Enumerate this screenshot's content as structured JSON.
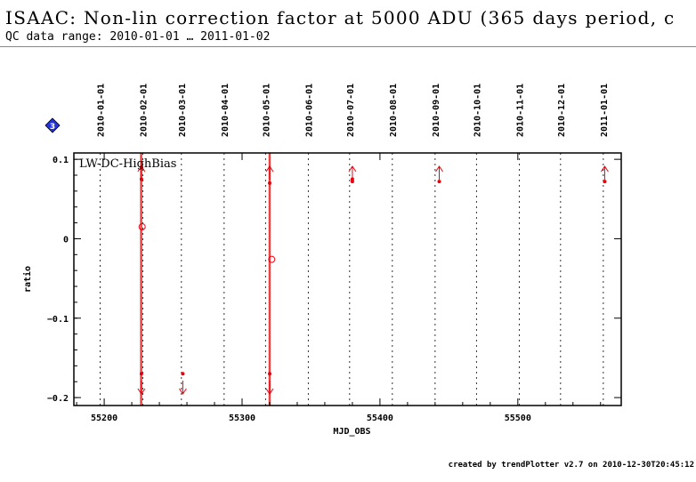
{
  "header": {
    "title": "ISAAC: Non-lin correction factor at 5000 ADU (365 days period, c",
    "subtitle": "QC data range: 2010-01-01 … 2011-01-02"
  },
  "footer": "created by trendPlotter v2.7 on 2010-12-30T20:45:12",
  "marker_icon": "diamond-3-icon",
  "chart_data": {
    "type": "scatter",
    "xlabel": "MJD_OBS",
    "ylabel": "ratio",
    "panel_label": "LW-DC-HighBias",
    "xlim": [
      55178,
      55575
    ],
    "ylim": [
      -0.21,
      0.108
    ],
    "xticks": [
      55200,
      55300,
      55400,
      55500
    ],
    "yticks": [
      0.1,
      0,
      -0.1,
      -0.2
    ],
    "ytick_labels": [
      "0.1",
      "0",
      "−0.1",
      "−0.2"
    ],
    "date_markers": [
      {
        "label": "2010-01-01",
        "mjd": 55197
      },
      {
        "label": "2010-02-01",
        "mjd": 55228
      },
      {
        "label": "2010-03-01",
        "mjd": 55256
      },
      {
        "label": "2010-04-01",
        "mjd": 55287
      },
      {
        "label": "2010-05-01",
        "mjd": 55317
      },
      {
        "label": "2010-06-01",
        "mjd": 55348
      },
      {
        "label": "2010-07-01",
        "mjd": 55378
      },
      {
        "label": "2010-08-01",
        "mjd": 55409
      },
      {
        "label": "2010-09-01",
        "mjd": 55440
      },
      {
        "label": "2010-10-01",
        "mjd": 55470
      },
      {
        "label": "2010-11-01",
        "mjd": 55501
      },
      {
        "label": "2010-12-01",
        "mjd": 55531
      },
      {
        "label": "2011-01-01",
        "mjd": 55562
      }
    ],
    "highlight_bands": [
      55226.8,
      55320.0
    ],
    "points": [
      {
        "x": 55227.0,
        "y": 0.09
      },
      {
        "x": 55227.0,
        "y": 0.075
      },
      {
        "x": 55227.0,
        "y": -0.17
      },
      {
        "x": 55320.0,
        "y": 0.07
      },
      {
        "x": 55320.0,
        "y": -0.17
      },
      {
        "x": 55380.0,
        "y": 0.075
      },
      {
        "x": 55380.0,
        "y": 0.072
      },
      {
        "x": 55443.0,
        "y": 0.072
      },
      {
        "x": 55563.0,
        "y": 0.072
      },
      {
        "x": 55257.0,
        "y": -0.17
      }
    ],
    "open_points": [
      {
        "x": 55227.5,
        "y": 0.015
      },
      {
        "x": 55321.5,
        "y": -0.026
      }
    ],
    "up_arrows": [
      55227,
      55320,
      55380,
      55443,
      55563
    ],
    "down_arrows": [
      55227,
      55257,
      55320
    ],
    "colors": {
      "data": "#e8000b",
      "band": "#ee2020",
      "grid": "#000000"
    }
  }
}
